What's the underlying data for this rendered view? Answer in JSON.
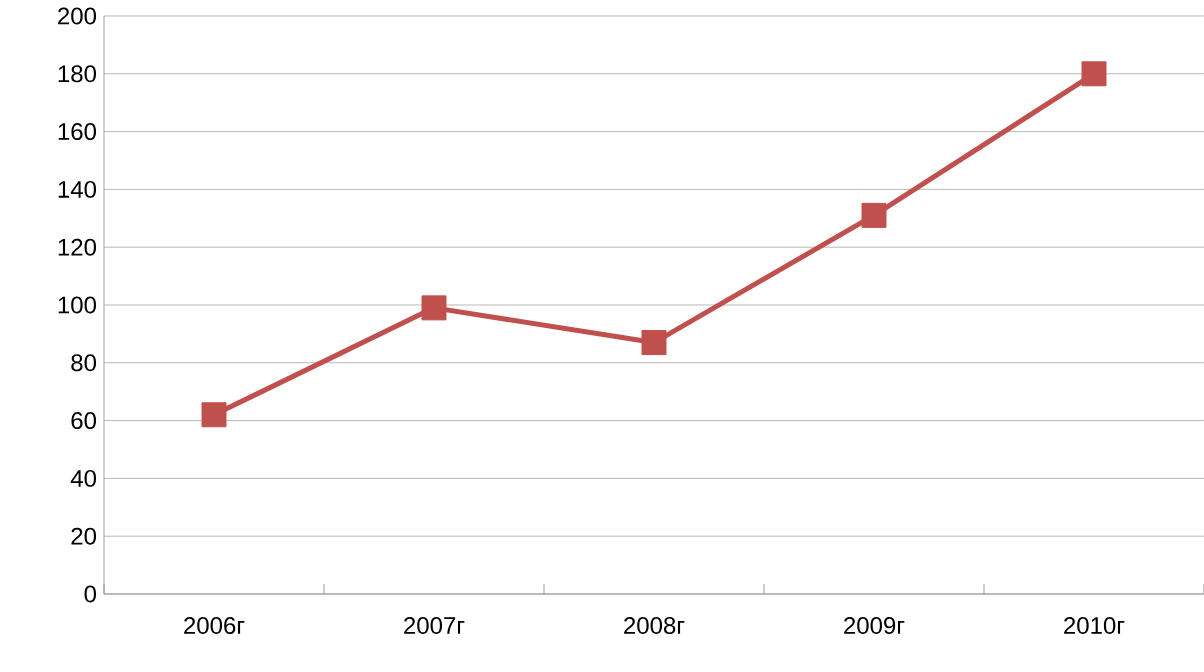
{
  "chart_data": {
    "type": "line",
    "categories": [
      "2006г",
      "2007г",
      "2008г",
      "2009г",
      "2010г"
    ],
    "series": [
      {
        "color": "#c0504d",
        "values": [
          62,
          99,
          87,
          131,
          180
        ]
      }
    ],
    "ylim": [
      0,
      200
    ],
    "yticks": [
      0,
      20,
      40,
      60,
      80,
      100,
      120,
      140,
      160,
      180,
      200
    ],
    "grid": "y",
    "marker": "square",
    "line_style": "solid"
  }
}
